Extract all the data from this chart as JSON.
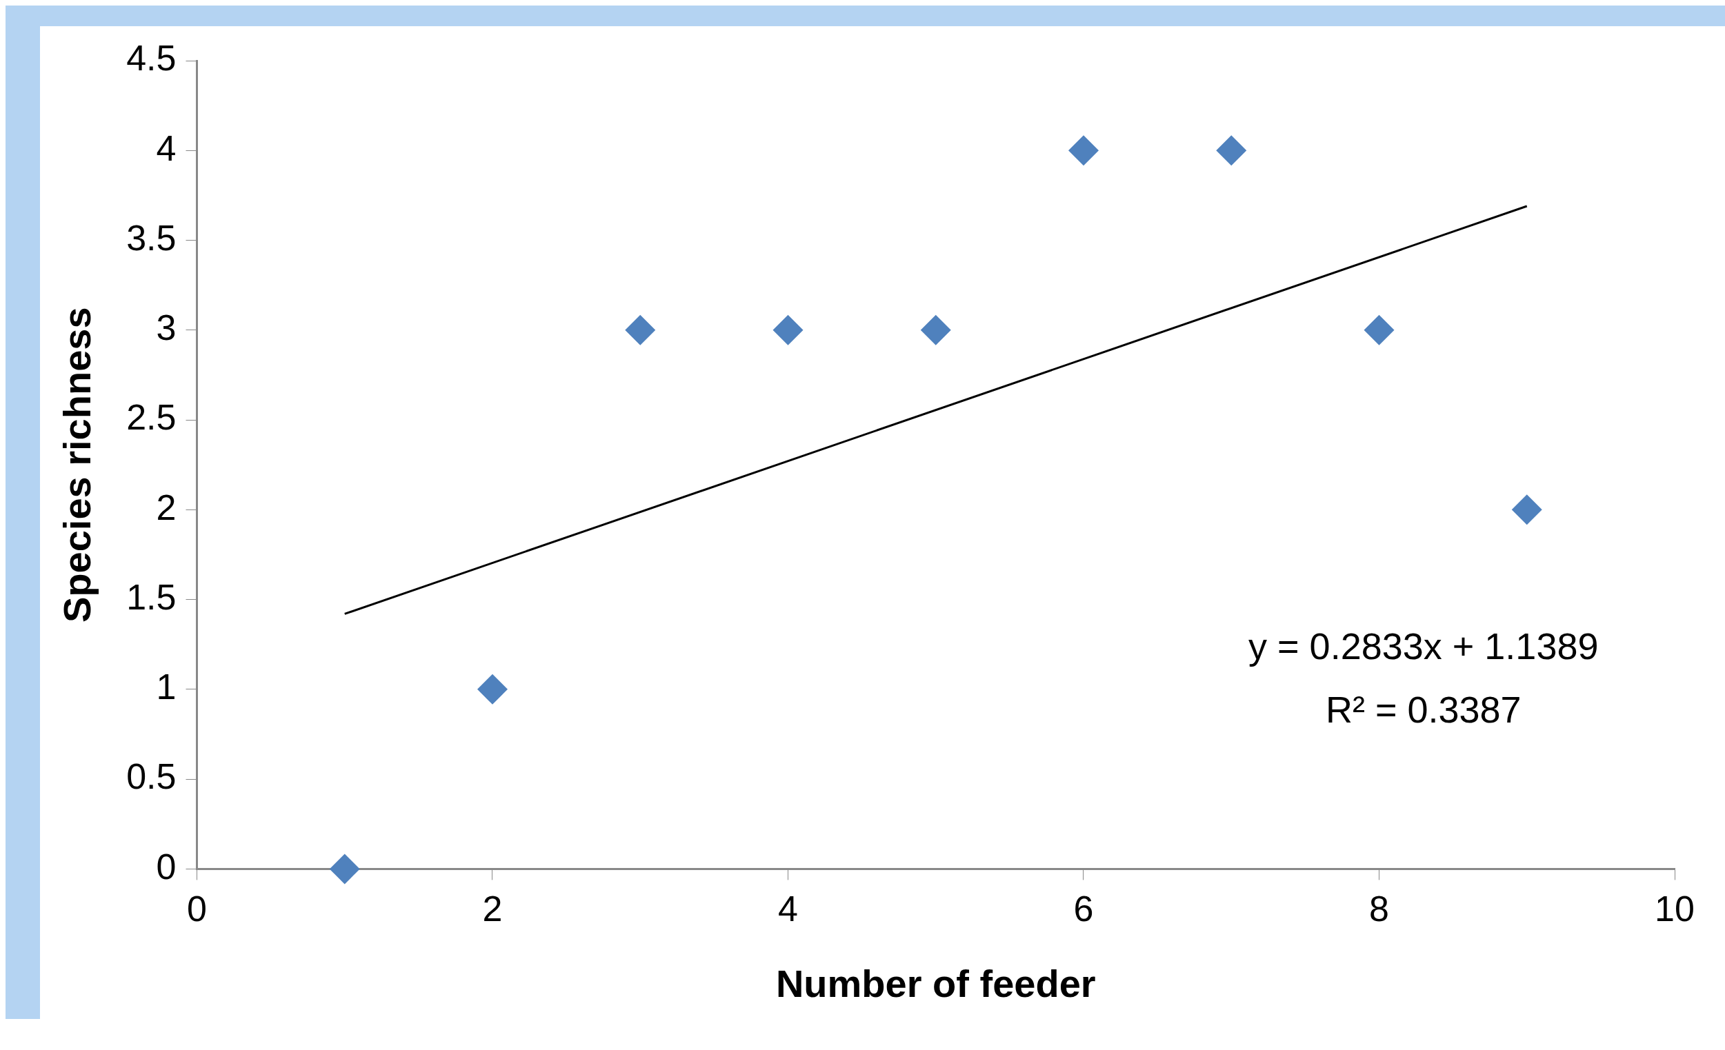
{
  "chart_data": {
    "type": "scatter",
    "xlabel": "Number of feeder",
    "ylabel": "Species richness",
    "x": [
      1,
      2,
      3,
      4,
      5,
      6,
      7,
      8,
      9
    ],
    "series": [
      {
        "color": "#4f81bd",
        "marker": "diamond",
        "values": [
          0,
          1,
          3,
          3,
          3,
          4,
          4,
          3,
          2
        ]
      },
      {
        "type": "line",
        "color": "#000000",
        "marker": "none",
        "x": [
          1,
          9
        ],
        "values": [
          1.42,
          3.69
        ]
      }
    ],
    "xlim": [
      0,
      10
    ],
    "xticks": [
      0,
      2,
      4,
      6,
      8,
      10
    ],
    "ylim": [
      0,
      4.5
    ],
    "yticks": [
      0,
      0.5,
      1,
      1.5,
      2,
      2.5,
      3,
      3.5,
      4,
      4.5
    ],
    "grid": false,
    "legend": false,
    "annotations": [
      "y = 0.2833x + 1.1389",
      "R² = 0.3387"
    ]
  }
}
